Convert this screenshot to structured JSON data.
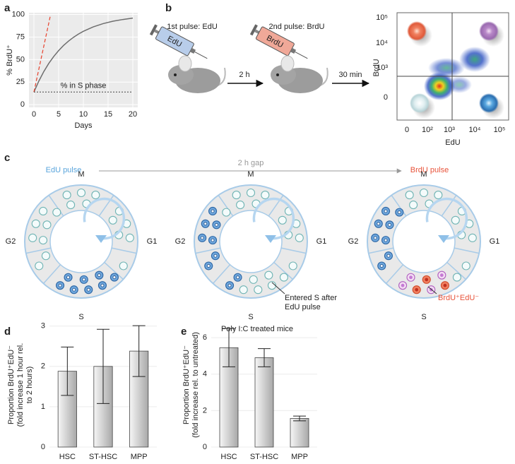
{
  "panel_labels": [
    "a",
    "b",
    "c",
    "d",
    "e"
  ],
  "chart_data": [
    {
      "type": "line",
      "xlabel": "Days",
      "ylabel": "% BrdU⁺",
      "xlim": [
        -1,
        21
      ],
      "ylim": [
        -3,
        102
      ],
      "xticks": [
        0,
        5,
        10,
        15,
        20
      ],
      "yticks": [
        0,
        25,
        50,
        75,
        100
      ],
      "grid": true,
      "background": "#ebebeb",
      "series": [
        {
          "color": "#6e6e6e",
          "style": "solid",
          "x": [
            0,
            1,
            2,
            3,
            4,
            5,
            6,
            7,
            8,
            9,
            10,
            12,
            14,
            16,
            18,
            20
          ],
          "values": [
            14,
            26.2,
            36.7,
            45.7,
            53.4,
            60,
            65.7,
            70.5,
            74.7,
            78.3,
            81.4,
            86.3,
            89.9,
            92.6,
            94.5,
            96
          ]
        },
        {
          "color": "#e8412c",
          "style": "dashed",
          "x": [
            0,
            3.3
          ],
          "values": [
            14,
            98
          ]
        },
        {
          "color": "#555555",
          "style": "dotted",
          "x": [
            0,
            20
          ],
          "values": [
            14,
            14
          ]
        }
      ],
      "annotations": [
        "% in S phase"
      ]
    },
    {
      "type": "bar",
      "ylabel": [
        "Proportion BrdU⁺EdU⁻",
        "(fold increase 1 hour rel.",
        "to 2 hours)"
      ],
      "categories": [
        "HSC",
        "ST-HSC",
        "MPP"
      ],
      "values": [
        1.88,
        2.0,
        2.38
      ],
      "errors": [
        0.6,
        0.92,
        0.63
      ],
      "ylim": [
        0,
        3.1
      ],
      "yticks": [
        0,
        1,
        2,
        3
      ],
      "grid": true,
      "color": "#a8a8a8"
    },
    {
      "type": "bar",
      "title": "Poly I:C treated mice",
      "ylabel": [
        "Proportion BrdU⁺EdU⁻",
        "(fold increase rel. to untreated)"
      ],
      "categories": [
        "HSC",
        "ST-HSC",
        "MPP"
      ],
      "values": [
        5.45,
        4.9,
        1.57
      ],
      "errors": [
        1.05,
        0.5,
        0.13
      ],
      "ylim": [
        0,
        6.7
      ],
      "yticks": [
        0,
        2,
        4,
        6
      ],
      "grid": true,
      "color": "#a8a8a8"
    }
  ],
  "labeling_scheme": {
    "syringes": [
      {
        "caption": "1st pulse: EdU",
        "label": "EdU"
      },
      {
        "caption": "2nd pulse: BrdU",
        "label": "BrdU"
      }
    ],
    "intervals": [
      "2 h",
      "30 min"
    ],
    "flow_plot": {
      "xlabel": "EdU",
      "ylabel": "BrdU",
      "x_ticks": [
        "0",
        "10²",
        "10³",
        "10⁴",
        "10⁵"
      ],
      "y_ticks": [
        "10⁵",
        "10⁴",
        "10³",
        "0"
      ]
    }
  },
  "cell_cycle": {
    "timeline": [
      "EdU pulse",
      "2 h gap",
      "BrdU pulse"
    ],
    "rings": [
      {
        "phases": [
          "M",
          "G1",
          "S",
          "G2"
        ]
      },
      {
        "phases": [
          "M",
          "G1",
          "S",
          "G2"
        ],
        "annotation": [
          "Entered S after",
          "EdU pulse"
        ]
      },
      {
        "phases": [
          "M",
          "G1",
          "S",
          "G2"
        ],
        "annotation": [
          "BrdU⁺EdU⁻"
        ]
      }
    ]
  }
}
